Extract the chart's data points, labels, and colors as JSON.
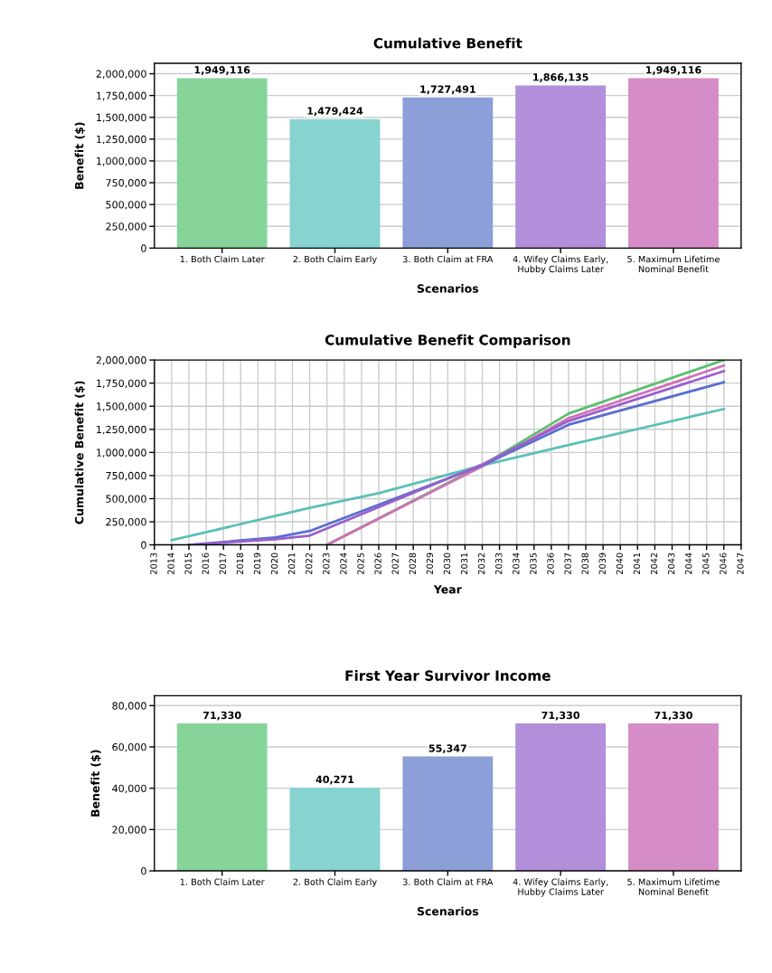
{
  "chart_data": [
    {
      "type": "bar",
      "title": "Cumulative Benefit",
      "xlabel": "Scenarios",
      "ylabel": "Benefit ($)",
      "categories": [
        "1. Both Claim Later",
        "2. Both Claim Early",
        "3. Both Claim at FRA",
        "4. Wifey Claims Early, Hubby Claims Later",
        "5. Maximum Lifetime Nominal Benefit"
      ],
      "values": [
        1949116,
        1479424,
        1727491,
        1866135,
        1949116
      ],
      "colors": [
        "#86d49a",
        "#86d3d0",
        "#8c9fd9",
        "#b18fda",
        "#d68cc6"
      ],
      "value_labels": [
        "1,949,116",
        "1,479,424",
        "1,727,491",
        "1,866,135",
        "1,949,116"
      ],
      "ylim": [
        0,
        2000000
      ],
      "yticks": [
        {
          "value": 0,
          "label": "0"
        },
        {
          "value": 250000,
          "label": "250,000"
        },
        {
          "value": 500000,
          "label": "500,000"
        },
        {
          "value": 750000,
          "label": "750,000"
        },
        {
          "value": 1000000,
          "label": "1,000,000"
        },
        {
          "value": 1250000,
          "label": "1,250,000"
        },
        {
          "value": 1500000,
          "label": "1,500,000"
        },
        {
          "value": 1750000,
          "label": "1,750,000"
        },
        {
          "value": 2000000,
          "label": "2,000,000"
        }
      ],
      "grid": "y"
    },
    {
      "type": "line",
      "title": "Cumulative Benefit Comparison",
      "xlabel": "Year",
      "ylabel": "Cumulative Benefit ($)",
      "series": [
        {
          "color": "#5cc0b8",
          "x": [
            2014,
            2022,
            2026,
            2032,
            2037,
            2046
          ],
          "values": [
            50000,
            400000,
            560000,
            860000,
            1080000,
            1470000
          ]
        },
        {
          "color": "#5cbf6e",
          "x": [
            2023,
            2032,
            2037,
            2046
          ],
          "values": [
            0,
            860000,
            1420000,
            2000000
          ]
        },
        {
          "color": "#d070b8",
          "x": [
            2023,
            2032,
            2037,
            2046
          ],
          "values": [
            0,
            850000,
            1370000,
            1940000
          ]
        },
        {
          "color": "#5a6ed0",
          "x": [
            2015,
            2020,
            2022,
            2032,
            2037,
            2046
          ],
          "values": [
            0,
            80000,
            150000,
            860000,
            1300000,
            1760000
          ]
        },
        {
          "color": "#9a60cc",
          "x": [
            2015,
            2020,
            2022,
            2032,
            2037,
            2046
          ],
          "values": [
            0,
            60000,
            100000,
            870000,
            1340000,
            1880000
          ]
        }
      ],
      "xlim": [
        2013,
        2047
      ],
      "xticks": [
        2013,
        2014,
        2015,
        2016,
        2017,
        2018,
        2019,
        2020,
        2021,
        2022,
        2023,
        2024,
        2025,
        2026,
        2027,
        2028,
        2029,
        2030,
        2031,
        2032,
        2033,
        2034,
        2035,
        2036,
        2037,
        2038,
        2039,
        2040,
        2041,
        2042,
        2043,
        2044,
        2045,
        2046,
        2047
      ],
      "ylim": [
        0,
        2000000
      ],
      "yticks": [
        {
          "value": 0,
          "label": "0"
        },
        {
          "value": 250000,
          "label": "250,000"
        },
        {
          "value": 500000,
          "label": "500,000"
        },
        {
          "value": 750000,
          "label": "750,000"
        },
        {
          "value": 1000000,
          "label": "1,000,000"
        },
        {
          "value": 1250000,
          "label": "1,250,000"
        },
        {
          "value": 1500000,
          "label": "1,500,000"
        },
        {
          "value": 1750000,
          "label": "1,750,000"
        },
        {
          "value": 2000000,
          "label": "2,000,000"
        }
      ],
      "grid": true,
      "marker": "none",
      "line_style": "solid"
    },
    {
      "type": "bar",
      "title": "First Year Survivor Income",
      "xlabel": "Scenarios",
      "ylabel": "Benefit ($)",
      "categories": [
        "1. Both Claim Later",
        "2. Both Claim Early",
        "3. Both Claim at FRA",
        "4. Wifey Claims Early, Hubby Claims Later",
        "5. Maximum Lifetime Nominal Benefit"
      ],
      "values": [
        71330,
        40271,
        55347,
        71330,
        71330
      ],
      "colors": [
        "#86d49a",
        "#86d3d0",
        "#8c9fd9",
        "#b18fda",
        "#d68cc6"
      ],
      "value_labels": [
        "71,330",
        "40,271",
        "55,347",
        "71,330",
        "71,330"
      ],
      "ylim": [
        0,
        80000
      ],
      "yticks": [
        {
          "value": 0,
          "label": "0"
        },
        {
          "value": 20000,
          "label": "20,000"
        },
        {
          "value": 40000,
          "label": "40,000"
        },
        {
          "value": 60000,
          "label": "60,000"
        },
        {
          "value": 80000,
          "label": "80,000"
        }
      ],
      "grid": "y"
    }
  ]
}
